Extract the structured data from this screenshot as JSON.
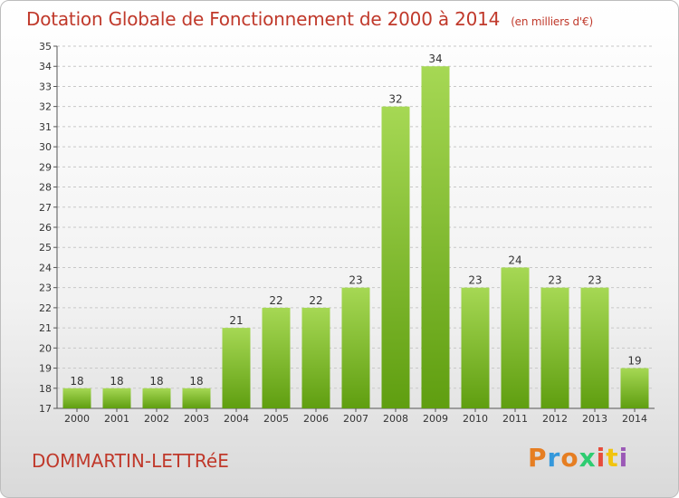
{
  "header": {
    "title": "Dotation Globale de Fonctionnement de 2000 à 2014",
    "unit": "(en milliers d'€)"
  },
  "footer": {
    "commune": "DOMMARTIN-LETTRéE",
    "logo_text": "Proxiti",
    "logo_colors": [
      "#e67e22",
      "#3498db",
      "#e67e22",
      "#2ecc71",
      "#e74c3c",
      "#f1c40f",
      "#9b59b6"
    ]
  },
  "colors": {
    "bar_top": "#a6d854",
    "bar_bottom": "#5f9e10",
    "title": "#c0392b",
    "grid": "#c8c8c8"
  },
  "chart_data": {
    "type": "bar",
    "title": "Dotation Globale de Fonctionnement de 2000 à 2014",
    "subtitle": "(en milliers d'€)",
    "xlabel": "",
    "ylabel": "",
    "categories": [
      "2000",
      "2001",
      "2002",
      "2003",
      "2004",
      "2005",
      "2006",
      "2007",
      "2008",
      "2009",
      "2010",
      "2011",
      "2012",
      "2013",
      "2014"
    ],
    "values": [
      18,
      18,
      18,
      18,
      21,
      22,
      22,
      23,
      32,
      34,
      23,
      24,
      23,
      23,
      19
    ],
    "ylim": [
      17,
      35
    ],
    "yticks": [
      17,
      18,
      19,
      20,
      21,
      22,
      23,
      24,
      25,
      26,
      27,
      28,
      29,
      30,
      31,
      32,
      33,
      34,
      35
    ],
    "grid": true,
    "data_labels": true
  }
}
